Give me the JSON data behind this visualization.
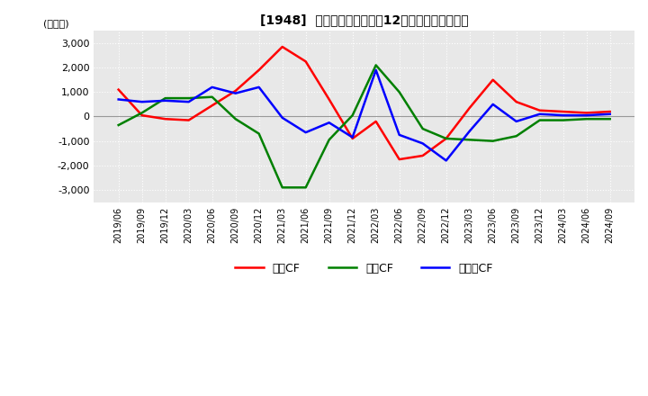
{
  "title": "[1948]  キャッシュフローの12か月移動合計の推移",
  "ylabel": "(百万円)",
  "ylim": [
    -3500,
    3500
  ],
  "yticks": [
    -3000,
    -2000,
    -1000,
    0,
    1000,
    2000,
    3000
  ],
  "dates": [
    "2019/06",
    "2019/09",
    "2019/12",
    "2020/03",
    "2020/06",
    "2020/09",
    "2020/12",
    "2021/03",
    "2021/06",
    "2021/09",
    "2021/12",
    "2022/03",
    "2022/06",
    "2022/09",
    "2022/12",
    "2023/03",
    "2023/06",
    "2023/09",
    "2023/12",
    "2024/03",
    "2024/06",
    "2024/09"
  ],
  "operating_cf": [
    1100,
    50,
    -100,
    -150,
    450,
    1050,
    1900,
    2850,
    2250,
    700,
    -900,
    -200,
    -1750,
    -1600,
    -900,
    350,
    1500,
    600,
    250,
    200,
    150,
    200
  ],
  "investing_cf": [
    -350,
    150,
    750,
    750,
    800,
    -100,
    -700,
    -2900,
    -2900,
    -950,
    50,
    2100,
    1000,
    -500,
    -900,
    -950,
    -1000,
    -800,
    -150,
    -150,
    -100,
    -100
  ],
  "free_cf": [
    700,
    600,
    650,
    600,
    1200,
    950,
    1200,
    -50,
    -650,
    -250,
    -850,
    1900,
    -750,
    -1100,
    -1800,
    -600,
    500,
    -200,
    100,
    50,
    50,
    100
  ],
  "operating_color": "#FF0000",
  "investing_color": "#008000",
  "free_color": "#0000FF",
  "bg_color": "#ffffff",
  "plot_bg_color": "#e8e8e8",
  "grid_color": "#ffffff",
  "legend_labels": [
    "営業CF",
    "投資CF",
    "フリーCF"
  ]
}
